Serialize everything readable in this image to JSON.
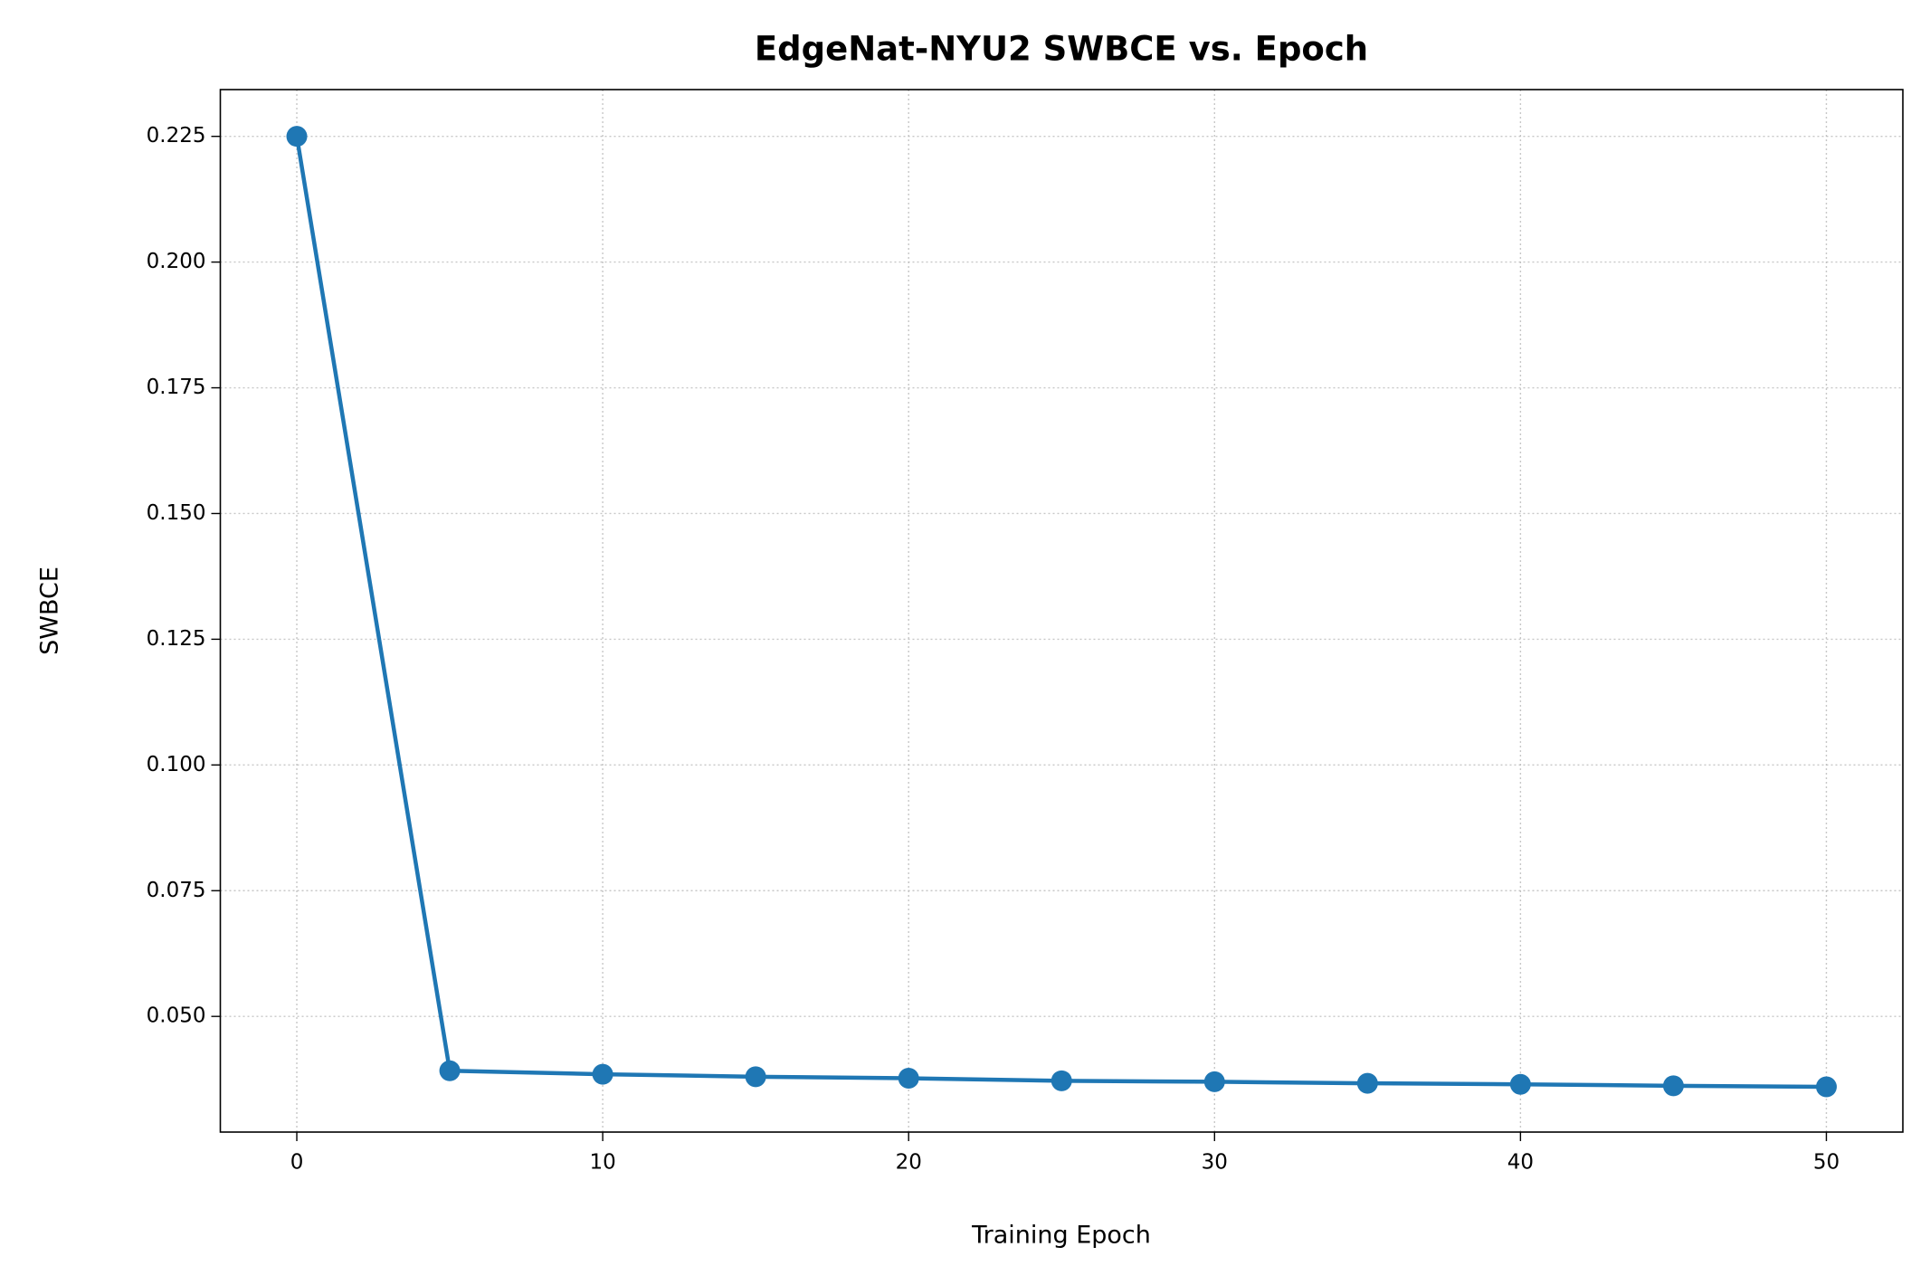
{
  "chart_data": {
    "type": "line",
    "title": "EdgeNat-NYU2 SWBCE vs. Epoch",
    "x_label": "Training Epoch",
    "y_label": "SWBCE",
    "x": [
      0,
      5,
      10,
      15,
      20,
      25,
      30,
      35,
      40,
      45,
      50
    ],
    "series": [
      {
        "name": "SWBCE",
        "color": "#1f77b4",
        "values": [
          0.225,
          0.0392,
          0.0385,
          0.038,
          0.0377,
          0.0372,
          0.037,
          0.0367,
          0.0365,
          0.0362,
          0.036
        ]
      }
    ],
    "xlim": [
      -2.5,
      52.5
    ],
    "xticks": [
      0,
      10,
      20,
      30,
      40,
      50
    ],
    "ylim": [
      0.027,
      0.2343
    ],
    "yticks": [
      {
        "value": 0.05,
        "label": "0.050"
      },
      0.075,
      {
        "value": 0.1,
        "label": "0.100"
      },
      0.125,
      {
        "value": 0.15,
        "label": "0.150"
      },
      0.175,
      {
        "value": 0.2,
        "label": "0.200"
      },
      0.225
    ],
    "grid": true
  }
}
